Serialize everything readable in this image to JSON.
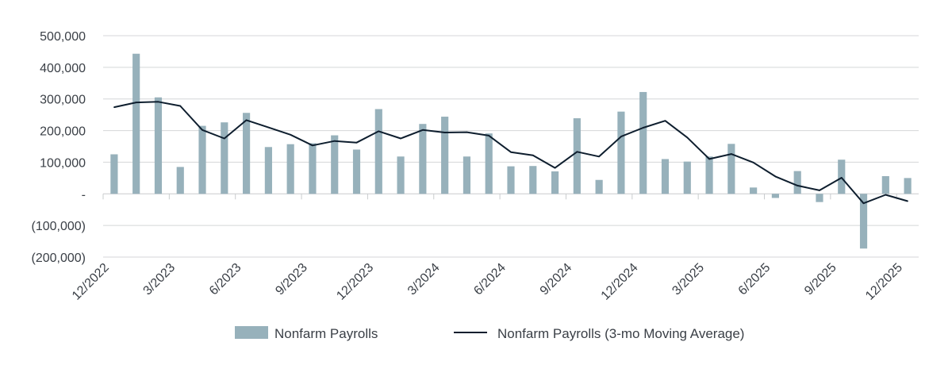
{
  "chart_data": {
    "type": "bar",
    "title": "",
    "xlabel": "",
    "ylabel": "",
    "ylim": [
      -200000,
      500000
    ],
    "grid": true,
    "legend_position": "bottom",
    "y_ticks": [
      {
        "value": 500000,
        "label": "500,000"
      },
      {
        "value": 400000,
        "label": "400,000"
      },
      {
        "value": 300000,
        "label": "300,000"
      },
      {
        "value": 200000,
        "label": "200,000"
      },
      {
        "value": 100000,
        "label": "100,000"
      },
      {
        "value": 0,
        "label": "-"
      },
      {
        "value": -100000,
        "label": "(100,000)"
      },
      {
        "value": -200000,
        "label": "(200,000)"
      }
    ],
    "x_tick_labels": [
      {
        "index": 0,
        "label": "12/2022"
      },
      {
        "index": 3,
        "label": "3/2023"
      },
      {
        "index": 6,
        "label": "6/2023"
      },
      {
        "index": 9,
        "label": "9/2023"
      },
      {
        "index": 12,
        "label": "12/2023"
      },
      {
        "index": 15,
        "label": "3/2024"
      },
      {
        "index": 18,
        "label": "6/2024"
      },
      {
        "index": 21,
        "label": "9/2024"
      },
      {
        "index": 24,
        "label": "12/2024"
      },
      {
        "index": 27,
        "label": "3/2025"
      },
      {
        "index": 30,
        "label": "6/2025"
      },
      {
        "index": 33,
        "label": "9/2025"
      },
      {
        "index": 36,
        "label": "12/2025"
      }
    ],
    "categories": [
      "12/2022",
      "1/2023",
      "2/2023",
      "3/2023",
      "4/2023",
      "5/2023",
      "6/2023",
      "7/2023",
      "8/2023",
      "9/2023",
      "10/2023",
      "11/2023",
      "12/2023",
      "1/2024",
      "2/2024",
      "3/2024",
      "4/2024",
      "5/2024",
      "6/2024",
      "7/2024",
      "8/2024",
      "9/2024",
      "10/2024",
      "11/2024",
      "12/2024",
      "1/2025",
      "2/2025",
      "3/2025",
      "4/2025",
      "5/2025",
      "6/2025",
      "7/2025",
      "8/2025",
      "9/2025",
      "10/2025",
      "11/2025",
      "12/2025"
    ],
    "series": [
      {
        "name": "Nonfarm Payrolls",
        "type": "bar",
        "color": "#97b1bb",
        "values": [
          125000,
          443000,
          305000,
          85000,
          215000,
          226000,
          256000,
          148000,
          157000,
          160000,
          185000,
          140000,
          268000,
          118000,
          221000,
          244000,
          118000,
          191000,
          87000,
          88000,
          71000,
          239000,
          44000,
          260000,
          322000,
          110000,
          102000,
          118000,
          158000,
          20000,
          -13000,
          72000,
          -26000,
          108000,
          -173000,
          56000,
          50000
        ]
      },
      {
        "name": "Nonfarm Payrolls (3-mo Moving Average)",
        "type": "line",
        "color": "#0e1e2e",
        "values": [
          274000,
          289000,
          291000,
          278000,
          202000,
          175000,
          233000,
          210000,
          187000,
          153000,
          167000,
          162000,
          198000,
          175000,
          202000,
          194000,
          195000,
          184000,
          132000,
          122000,
          82000,
          133000,
          118000,
          181000,
          209000,
          231000,
          178000,
          110000,
          126000,
          99000,
          55000,
          26000,
          11000,
          51000,
          -30000,
          -3000,
          -23000
        ]
      }
    ]
  }
}
